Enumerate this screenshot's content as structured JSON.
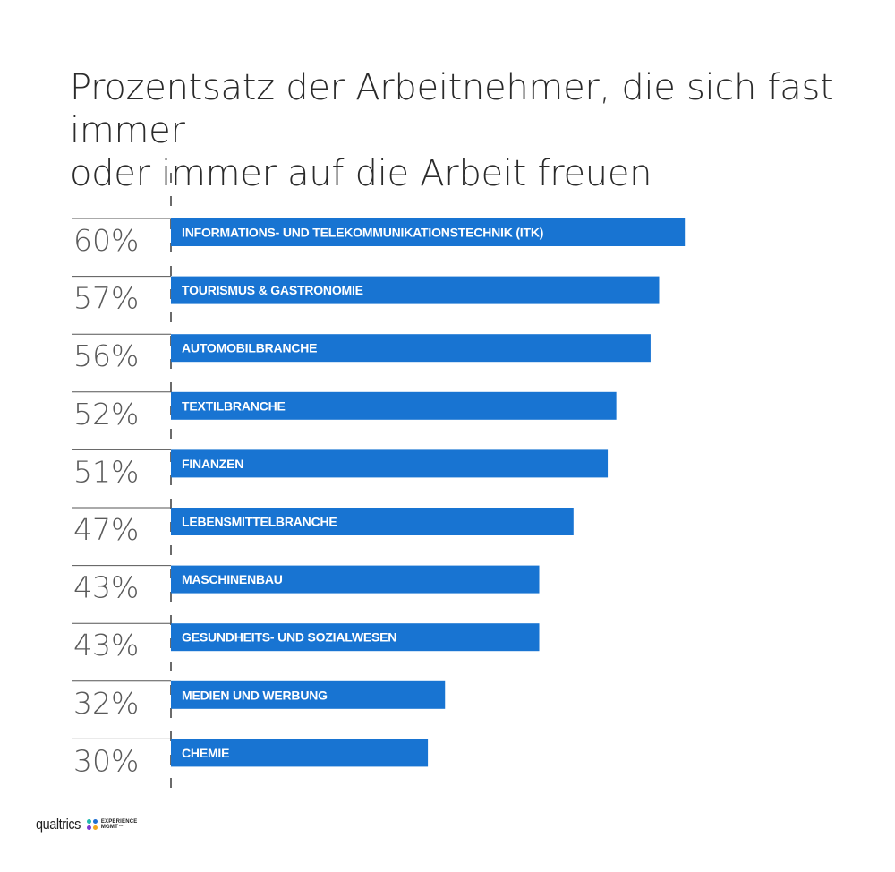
{
  "chart_data": {
    "type": "bar",
    "orientation": "horizontal",
    "title": [
      "Prozentsatz der Arbeitnehmer, die sich fast immer",
      "oder immer auf die Arbeit freuen"
    ],
    "categories": [
      "INFORMATIONS- UND TELEKOMMUNIKATIONSTECHNIK (ITK)",
      "TOURISMUS & GASTRONOMIE",
      "AUTOMOBILBRANCHE",
      "TEXTILBRANCHE",
      "FINANZEN",
      "LEBENSMITTELBRANCHE",
      "MASCHINENBAU",
      "GESUNDHEITS- UND SOZIALWESEN",
      "MEDIEN UND WERBUNG",
      "CHEMIE"
    ],
    "values": [
      60,
      57,
      56,
      52,
      51,
      47,
      43,
      43,
      32,
      30
    ],
    "value_labels": [
      "60%",
      "57%",
      "56%",
      "52%",
      "51%",
      "47%",
      "43%",
      "43%",
      "32%",
      "30%"
    ],
    "unit": "%",
    "xlim": [
      0,
      100
    ],
    "bar_color": "#1874d2",
    "grid": false,
    "legend": "none"
  },
  "branding": {
    "logo_text": "qualtrics",
    "logo_sub": [
      "EXPERIENCE",
      "MGMT™"
    ],
    "logo_colors": [
      "#21b9b0",
      "#1f6fd1",
      "#7a3ad1",
      "#f2a81d"
    ]
  }
}
